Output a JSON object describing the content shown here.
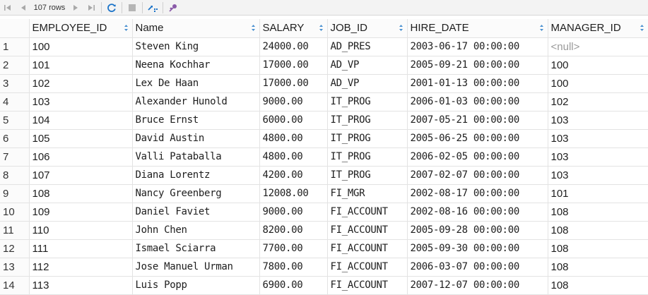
{
  "toolbar": {
    "rows_label": "107 rows",
    "accent": "#1a73c8",
    "icons": [
      "first-page-icon",
      "prev-page-icon",
      "next-page-icon",
      "last-page-icon",
      "refresh-icon",
      "stop-icon",
      "auto-arrange-icon",
      "pin-icon"
    ]
  },
  "columns": [
    {
      "label": "EMPLOYEE_ID"
    },
    {
      "label": "Name"
    },
    {
      "label": "SALARY"
    },
    {
      "label": "JOB_ID"
    },
    {
      "label": "HIRE_DATE"
    },
    {
      "label": "MANAGER_ID"
    }
  ],
  "rows": [
    {
      "n": "1",
      "id": "100",
      "name": "Steven King",
      "salary": "24000.00",
      "job": "AD_PRES",
      "hire": "2003-06-17 00:00:00",
      "mgr": "<null>"
    },
    {
      "n": "2",
      "id": "101",
      "name": "Neena Kochhar",
      "salary": "17000.00",
      "job": "AD_VP",
      "hire": "2005-09-21 00:00:00",
      "mgr": "100"
    },
    {
      "n": "3",
      "id": "102",
      "name": "Lex De Haan",
      "salary": "17000.00",
      "job": "AD_VP",
      "hire": "2001-01-13 00:00:00",
      "mgr": "100"
    },
    {
      "n": "4",
      "id": "103",
      "name": "Alexander Hunold",
      "salary": "9000.00",
      "job": "IT_PROG",
      "hire": "2006-01-03 00:00:00",
      "mgr": "102"
    },
    {
      "n": "5",
      "id": "104",
      "name": "Bruce Ernst",
      "salary": "6000.00",
      "job": "IT_PROG",
      "hire": "2007-05-21 00:00:00",
      "mgr": "103"
    },
    {
      "n": "6",
      "id": "105",
      "name": "David Austin",
      "salary": "4800.00",
      "job": "IT_PROG",
      "hire": "2005-06-25 00:00:00",
      "mgr": "103"
    },
    {
      "n": "7",
      "id": "106",
      "name": "Valli Pataballa",
      "salary": "4800.00",
      "job": "IT_PROG",
      "hire": "2006-02-05 00:00:00",
      "mgr": "103"
    },
    {
      "n": "8",
      "id": "107",
      "name": "Diana Lorentz",
      "salary": "4200.00",
      "job": "IT_PROG",
      "hire": "2007-02-07 00:00:00",
      "mgr": "103"
    },
    {
      "n": "9",
      "id": "108",
      "name": "Nancy Greenberg",
      "salary": "12008.00",
      "job": "FI_MGR",
      "hire": "2002-08-17 00:00:00",
      "mgr": "101"
    },
    {
      "n": "10",
      "id": "109",
      "name": "Daniel Faviet",
      "salary": "9000.00",
      "job": "FI_ACCOUNT",
      "hire": "2002-08-16 00:00:00",
      "mgr": "108"
    },
    {
      "n": "11",
      "id": "110",
      "name": "John Chen",
      "salary": "8200.00",
      "job": "FI_ACCOUNT",
      "hire": "2005-09-28 00:00:00",
      "mgr": "108"
    },
    {
      "n": "12",
      "id": "111",
      "name": "Ismael Sciarra",
      "salary": "7700.00",
      "job": "FI_ACCOUNT",
      "hire": "2005-09-30 00:00:00",
      "mgr": "108"
    },
    {
      "n": "13",
      "id": "112",
      "name": "Jose Manuel Urman",
      "salary": "7800.00",
      "job": "FI_ACCOUNT",
      "hire": "2006-03-07 00:00:00",
      "mgr": "108"
    },
    {
      "n": "14",
      "id": "113",
      "name": "Luis Popp",
      "salary": "6900.00",
      "job": "FI_ACCOUNT",
      "hire": "2007-12-07 00:00:00",
      "mgr": "108"
    }
  ]
}
